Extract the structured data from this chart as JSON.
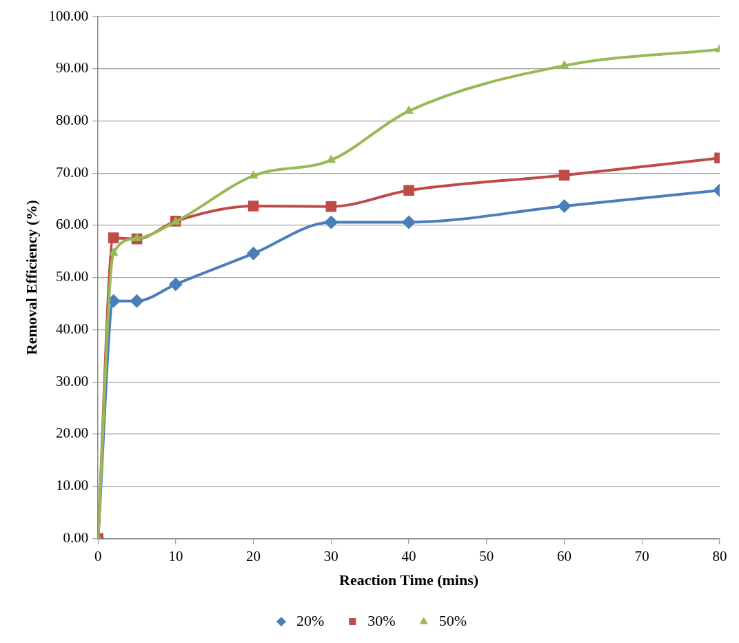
{
  "chart_data": {
    "type": "line",
    "xlabel": "Reaction Time (mins)",
    "ylabel": "Removal Efficiency (%)",
    "x": [
      0,
      2,
      5,
      10,
      20,
      30,
      40,
      60,
      80
    ],
    "series": [
      {
        "name": "20%",
        "color": "#4a7ebb",
        "marker": "diamond",
        "values": [
          0,
          45.5,
          45.5,
          48.7,
          54.6,
          60.6,
          60.6,
          63.7,
          66.7
        ]
      },
      {
        "name": "30%",
        "color": "#be4b48",
        "marker": "square",
        "values": [
          0,
          57.6,
          57.4,
          60.8,
          63.7,
          63.6,
          66.7,
          69.6,
          72.9
        ]
      },
      {
        "name": "50%",
        "color": "#98b954",
        "marker": "triangle",
        "values": [
          0,
          54.7,
          57.5,
          60.7,
          69.5,
          72.5,
          81.9,
          90.6,
          93.7
        ]
      }
    ],
    "xlim": [
      0,
      80
    ],
    "xticks": [
      0,
      10,
      20,
      30,
      40,
      50,
      60,
      70,
      80
    ],
    "ylim": [
      0,
      100
    ],
    "yticks": [
      {
        "value": 0,
        "label": "0.00"
      },
      {
        "value": 10,
        "label": "10.00"
      },
      {
        "value": 20,
        "label": "20.00"
      },
      {
        "value": 30,
        "label": "30.00"
      },
      {
        "value": 40,
        "label": "40.00"
      },
      {
        "value": 50,
        "label": "50.00"
      },
      {
        "value": 60,
        "label": "60.00"
      },
      {
        "value": 70,
        "label": "70.00"
      },
      {
        "value": 80,
        "label": "80.00"
      },
      {
        "value": 90,
        "label": "90.00"
      },
      {
        "value": 100,
        "label": "100.00"
      }
    ],
    "grid": "y",
    "legend": "bottom",
    "line_style": "solid"
  }
}
